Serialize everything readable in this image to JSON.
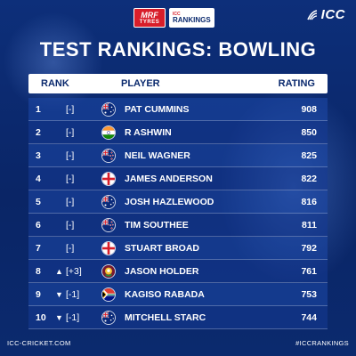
{
  "sponsor": {
    "mrf_line1": "MRF",
    "mrf_line2": "TYRES",
    "rankings_small": "ICC",
    "rankings_label": "RANKINGS"
  },
  "brand": "ICC",
  "title": "TEST RANKINGS: BOWLING",
  "columns": {
    "rank": "RANK",
    "player": "PLAYER",
    "rating": "RATING"
  },
  "rows": [
    {
      "pos": "1",
      "arrow": "",
      "change": "[-]",
      "flag": "australia-flag",
      "name": "PAT CUMMINS",
      "rating": "908"
    },
    {
      "pos": "2",
      "arrow": "",
      "change": "[-]",
      "flag": "india-flag",
      "name": "R ASHWIN",
      "rating": "850"
    },
    {
      "pos": "3",
      "arrow": "",
      "change": "[-]",
      "flag": "new-zealand-flag",
      "name": "NEIL WAGNER",
      "rating": "825"
    },
    {
      "pos": "4",
      "arrow": "",
      "change": "[-]",
      "flag": "england-flag",
      "name": "JAMES ANDERSON",
      "rating": "822"
    },
    {
      "pos": "5",
      "arrow": "",
      "change": "[-]",
      "flag": "australia-flag",
      "name": "JOSH HAZLEWOOD",
      "rating": "816"
    },
    {
      "pos": "6",
      "arrow": "",
      "change": "[-]",
      "flag": "new-zealand-flag",
      "name": "TIM SOUTHEE",
      "rating": "811"
    },
    {
      "pos": "7",
      "arrow": "",
      "change": "[-]",
      "flag": "england-flag",
      "name": "STUART BROAD",
      "rating": "792"
    },
    {
      "pos": "8",
      "arrow": "▲",
      "change": "[+3]",
      "flag": "west-indies-flag",
      "name": "JASON HOLDER",
      "rating": "761"
    },
    {
      "pos": "9",
      "arrow": "▼",
      "change": "[-1]",
      "flag": "south-africa-flag",
      "name": "KAGISO RABADA",
      "rating": "753"
    },
    {
      "pos": "10",
      "arrow": "▼",
      "change": "[-1]",
      "flag": "australia-flag",
      "name": "MITCHELL STARC",
      "rating": "744"
    }
  ],
  "footer": {
    "left": "ICC-CRICKET.COM",
    "right": "#ICCRANKINGS"
  },
  "colors": {
    "background": "#0b2a6e",
    "row": "#1e48aa",
    "header_bg": "#ffffff",
    "header_text": "#0b2a6e",
    "brand_red": "#d81e2a"
  }
}
